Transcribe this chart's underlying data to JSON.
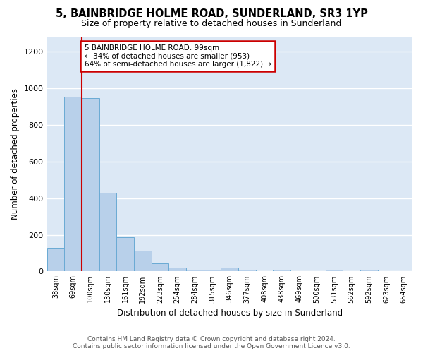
{
  "title_line1": "5, BAINBRIDGE HOLME ROAD, SUNDERLAND, SR3 1YP",
  "title_line2": "Size of property relative to detached houses in Sunderland",
  "xlabel": "Distribution of detached houses by size in Sunderland",
  "ylabel": "Number of detached properties",
  "categories": [
    "38sqm",
    "69sqm",
    "100sqm",
    "130sqm",
    "161sqm",
    "192sqm",
    "223sqm",
    "254sqm",
    "284sqm",
    "315sqm",
    "346sqm",
    "377sqm",
    "408sqm",
    "438sqm",
    "469sqm",
    "500sqm",
    "531sqm",
    "562sqm",
    "592sqm",
    "623sqm",
    "654sqm"
  ],
  "values": [
    127,
    953,
    945,
    430,
    185,
    113,
    45,
    20,
    10,
    10,
    20,
    10,
    0,
    10,
    0,
    0,
    10,
    0,
    10,
    0,
    0
  ],
  "bar_color": "#b8d0ea",
  "bar_edge_color": "#6aaad4",
  "vline_x": 1.5,
  "vline_color": "#cc0000",
  "annotation_text": "5 BAINBRIDGE HOLME ROAD: 99sqm\n← 34% of detached houses are smaller (953)\n64% of semi-detached houses are larger (1,822) →",
  "annotation_box_color": "#ffffff",
  "annotation_box_edge": "#cc0000",
  "footer": "Contains HM Land Registry data © Crown copyright and database right 2024.\nContains public sector information licensed under the Open Government Licence v3.0.",
  "ylim": [
    0,
    1280
  ],
  "yticks": [
    0,
    200,
    400,
    600,
    800,
    1000,
    1200
  ],
  "fig_bg_color": "#ffffff",
  "plot_bg_color": "#dce8f5"
}
